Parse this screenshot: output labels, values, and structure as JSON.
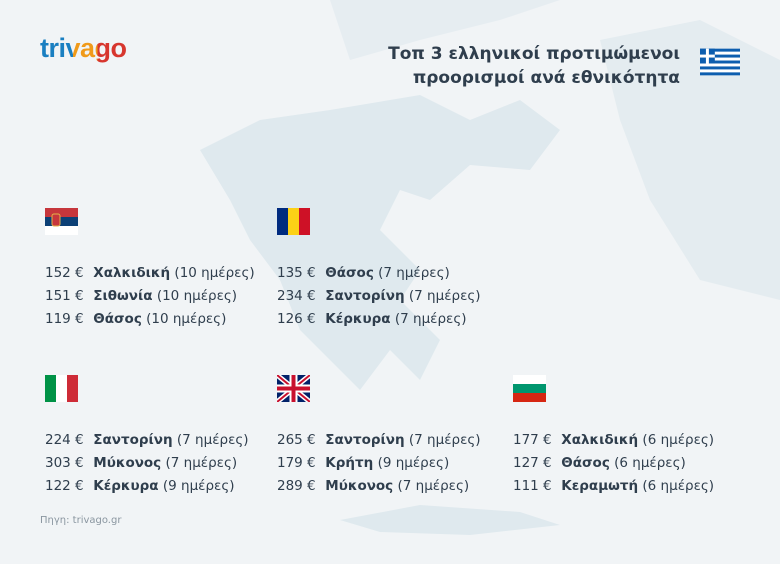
{
  "header": {
    "logo": "trivago",
    "title_lines": [
      "Τοπ 3 ελληνικοί προτιμώμενοι",
      "προορισμοί ανά εθνικότητα"
    ]
  },
  "groups": [
    {
      "rows": [
        {
          "price": "152 €",
          "place": "Χαλκιδική",
          "duration": "(10 ημέρες)"
        },
        {
          "price": "151 €",
          "place": "Σιθωνία",
          "duration": "(10 ημέρες)"
        },
        {
          "price": "119 €",
          "place": "Θάσος",
          "duration": "(10 ημέρες)"
        }
      ]
    },
    {
      "rows": [
        {
          "price": "135 €",
          "place": "Θάσος",
          "duration": "(7 ημέρες)"
        },
        {
          "price": "234 €",
          "place": "Σαντορίνη",
          "duration": "(7 ημέρες)"
        },
        {
          "price": "126 €",
          "place": "Κέρκυρα",
          "duration": "(7 ημέρες)"
        }
      ]
    },
    {
      "rows": [
        {
          "price": "224 €",
          "place": "Σαντορίνη",
          "duration": "(7 ημέρες)"
        },
        {
          "price": "303 €",
          "place": "Μύκονος",
          "duration": "(7 ημέρες)"
        },
        {
          "price": "122 €",
          "place": "Κέρκυρα",
          "duration": "(9 ημέρες)"
        }
      ]
    },
    {
      "rows": [
        {
          "price": "265 €",
          "place": "Σαντορίνη",
          "duration": "(7 ημέρες)"
        },
        {
          "price": "179 €",
          "place": "Κρήτη",
          "duration": "(9 ημέρες)"
        },
        {
          "price": "289 €",
          "place": "Μύκονος",
          "duration": "(7 ημέρες)"
        }
      ]
    },
    {
      "rows": [
        {
          "price": "177 €",
          "place": "Χαλκιδική",
          "duration": "(6 ημέρες)"
        },
        {
          "price": "127 €",
          "place": "Θάσος",
          "duration": "(6 ημέρες)"
        },
        {
          "price": "111 €",
          "place": "Κεραμωτή",
          "duration": "(6 ημέρες)"
        }
      ]
    }
  ],
  "source": "Πηγη: trivago.gr"
}
